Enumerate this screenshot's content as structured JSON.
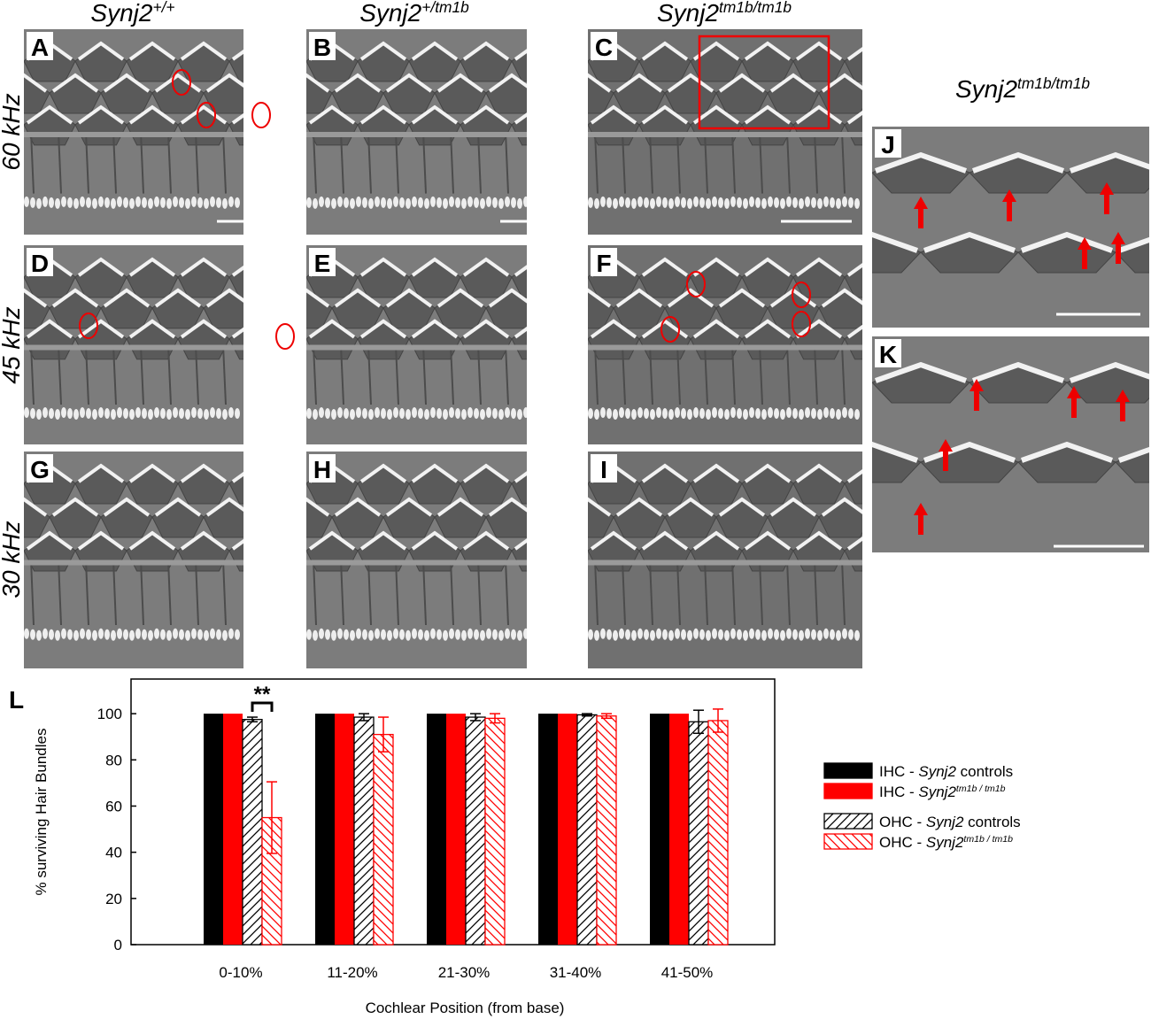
{
  "panel_labels": [
    "A",
    "B",
    "C",
    "D",
    "E",
    "F",
    "G",
    "H",
    "I",
    "J",
    "K"
  ],
  "column_headers": [
    [
      {
        "text": "Synj2"
      },
      {
        "text": "+/+",
        "sup": true
      }
    ],
    [
      {
        "text": "Synj2"
      },
      {
        "text": "+/tm1b",
        "sup": true
      }
    ],
    [
      {
        "text": "Synj2"
      },
      {
        "text": "tm1b/tm1b",
        "sup": true
      }
    ]
  ],
  "inset_header": [
    {
      "text": "Synj2"
    },
    {
      "text": "tm1b/tm1b",
      "sup": true
    }
  ],
  "row_labels": [
    "60 kHz",
    "45 kHz",
    "30 kHz"
  ],
  "chart_data": {
    "type": "bar",
    "panel_label": "L",
    "y_label": "% surviving Hair Bundles",
    "x_label": "Cochlear Position (from base)",
    "categories": [
      "0-10%",
      "11-20%",
      "21-30%",
      "31-40%",
      "41-50%"
    ],
    "ylim": [
      0,
      115
    ],
    "yticks": [
      0,
      20,
      40,
      60,
      80,
      100
    ],
    "annotation": "**",
    "series": [
      {
        "name": [
          {
            "text": "IHC - "
          },
          {
            "text": "Synj2",
            "italic": true
          },
          {
            "text": " controls"
          }
        ],
        "color": "#000000",
        "hatch": false,
        "values": [
          100,
          100,
          100,
          100,
          100
        ]
      },
      {
        "name": [
          {
            "text": "IHC - "
          },
          {
            "text": "Synj2",
            "italic": true
          },
          {
            "text": "tm1b / tm1b",
            "italic": true,
            "sup": true
          }
        ],
        "color": "#ff0000",
        "hatch": false,
        "values": [
          100,
          100,
          100,
          100,
          100
        ]
      },
      {
        "name": [
          {
            "text": "OHC - "
          },
          {
            "text": "Synj2",
            "italic": true
          },
          {
            "text": " controls"
          }
        ],
        "color": "#000000",
        "hatch": "/",
        "values": [
          97.5,
          98.5,
          98.5,
          99.5,
          96.5
        ],
        "errors": [
          1,
          1.5,
          1.5,
          0.5,
          5
        ]
      },
      {
        "name": [
          {
            "text": "OHC - "
          },
          {
            "text": "Synj2",
            "italic": true
          },
          {
            "text": "tm1b / tm1b",
            "italic": true,
            "sup": true
          }
        ],
        "color": "#ff0000",
        "hatch": "\\",
        "values": [
          55,
          91,
          98,
          99,
          97
        ],
        "errors": [
          15.5,
          7.5,
          2,
          1,
          5
        ]
      }
    ]
  }
}
